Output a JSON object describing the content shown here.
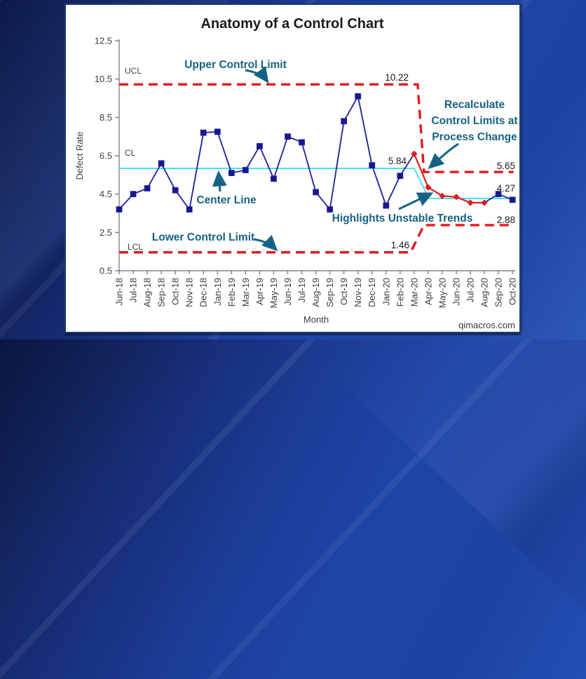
{
  "window": {
    "watermark": "qimacros.com"
  },
  "chart": {
    "title": "Anatomy of a Control Chart",
    "xlabel": "Month",
    "ylabel": "Defect Rate"
  },
  "annotations": {
    "upper": "Upper Control Limit",
    "center": "Center Line",
    "lower": "Lower Control Limit",
    "recalc_line1": "Recalculate",
    "recalc_line2": "Control Limits at",
    "recalc_line3": "Process Change",
    "unstable": "Highlights Unstable Trends",
    "ucl_zone_label": "UCL",
    "cl_zone_label": "CL",
    "lcl_zone_label": "LCL"
  },
  "chart_data": {
    "type": "line",
    "title": "Anatomy of a Control Chart",
    "xlabel": "Month",
    "ylabel": "Defect Rate",
    "ylim": [
      0.5,
      12.5
    ],
    "y_ticks": [
      0.5,
      2.5,
      4.5,
      6.5,
      8.5,
      10.5,
      12.5
    ],
    "grid": false,
    "legend": false,
    "categories": [
      "Jun-18",
      "Jul-18",
      "Aug-18",
      "Sep-18",
      "Oct-18",
      "Nov-18",
      "Dec-18",
      "Jan-19",
      "Feb-19",
      "Mar-19",
      "Apr-19",
      "May-19",
      "Jun-19",
      "Jul-19",
      "Aug-19",
      "Sep-19",
      "Oct-19",
      "Nov-19",
      "Dec-19",
      "Jan-20",
      "Feb-20",
      "Mar-20",
      "Apr-20",
      "May-20",
      "Jun-20",
      "Jul-20",
      "Aug-20",
      "Sep-20",
      "Oct-20"
    ],
    "series": [
      {
        "name": "Defect Rate",
        "values": [
          3.7,
          4.5,
          4.8,
          6.1,
          4.7,
          3.7,
          7.7,
          7.75,
          5.6,
          5.75,
          7.0,
          5.3,
          7.5,
          7.2,
          4.6,
          3.7,
          8.3,
          9.6,
          6.0,
          3.9,
          5.45,
          6.6,
          4.85,
          4.4,
          4.35,
          4.05,
          4.05,
          4.5,
          4.2
        ]
      }
    ],
    "unstable_indices": [
      21,
      22,
      23,
      24,
      25,
      26
    ],
    "limits": {
      "change_after_category": "Mar-20",
      "change_index": 21,
      "phase1": {
        "ucl": 10.22,
        "cl": 5.84,
        "lcl": 1.46,
        "ucl_label": "10.22",
        "cl_label": "5.84",
        "lcl_label": "1.46"
      },
      "phase2": {
        "ucl": 5.65,
        "cl": 4.27,
        "lcl": 2.88,
        "ucl_label": "5.65",
        "cl_label": "4.27",
        "lcl_label": "2.88"
      }
    },
    "colors": {
      "series_line": "#28289b",
      "marker": "#17178f",
      "unstable": "#e01b1e",
      "control_limit": "#e01b1e",
      "center_line": "#3ddff2",
      "annotation": "#176283",
      "axis": "#6e6e6e"
    }
  }
}
